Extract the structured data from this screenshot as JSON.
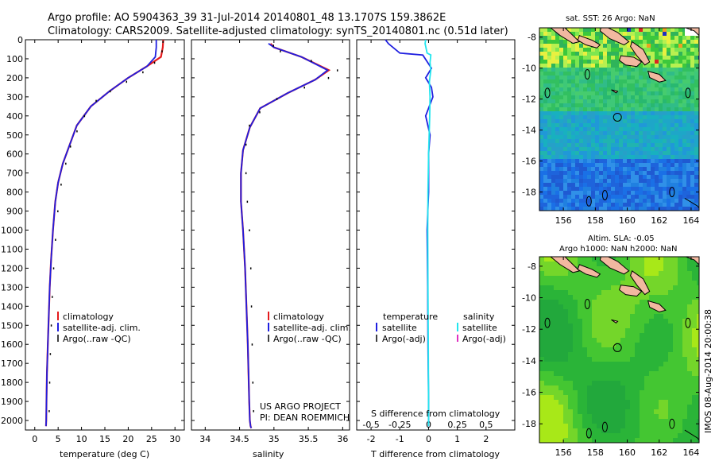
{
  "title": {
    "line1": "Argo profile: AO 5904363_39 31-Jul-2014 20140801_48 13.1707S 159.3862E",
    "line2": "Climatology: CARS2009. Satellite-adjusted climatology: synTS_20140801.nc (0.51d later)"
  },
  "credits": {
    "line1": "US ARGO PROJECT",
    "line2": "PI: DEAN ROEMMICH"
  },
  "stamp": "IMOS 08-Aug-2014 20:00:38",
  "colors": {
    "clim": "#e41a1c",
    "sat": "#1f1fe0",
    "argo": "#000000",
    "sat_sal": "#22e6ee",
    "argo_sal": "#e030c0"
  },
  "chart_data": [
    {
      "type": "line",
      "name": "temperature",
      "xlabel": "temperature (deg C)",
      "ylabel": "",
      "xlim": [
        -2,
        32
      ],
      "ylim": [
        2050,
        0
      ],
      "xticks": [
        0,
        5,
        10,
        15,
        20,
        25,
        30
      ],
      "yticks": [
        0,
        100,
        200,
        300,
        400,
        500,
        600,
        700,
        800,
        900,
        1000,
        1100,
        1200,
        1300,
        1400,
        1500,
        1600,
        1700,
        1800,
        1900,
        2000
      ],
      "series": [
        {
          "name": "climatology",
          "style": "line",
          "x": [
            27.5,
            27.4,
            27.0,
            24.0,
            20.0,
            16.0,
            12.0,
            9.0,
            7.5,
            6.0,
            5.0,
            4.4,
            3.9,
            3.5,
            3.2,
            3.0,
            2.8,
            2.6,
            2.5,
            2.45,
            2.4
          ],
          "y": [
            0,
            40,
            90,
            140,
            200,
            270,
            350,
            450,
            550,
            650,
            750,
            850,
            1000,
            1150,
            1300,
            1450,
            1600,
            1750,
            1900,
            2000,
            2030
          ]
        },
        {
          "name": "satellite-adj. clim.",
          "style": "line",
          "x": [
            26.0,
            26.0,
            25.8,
            24.0,
            20.0,
            16.0,
            12.0,
            9.0,
            7.5,
            6.0,
            5.0,
            4.4,
            3.9,
            3.5,
            3.2,
            3.0,
            2.8,
            2.6,
            2.5,
            2.45,
            2.4
          ],
          "y": [
            0,
            40,
            90,
            140,
            200,
            270,
            350,
            450,
            550,
            650,
            750,
            850,
            1000,
            1150,
            1300,
            1450,
            1600,
            1750,
            1900,
            2000,
            2030
          ]
        },
        {
          "name": "Argo(..raw -QC)",
          "style": "dots",
          "x": [
            26.8,
            26.6,
            25.0,
            22.5,
            19.0,
            15.5,
            12.5,
            10.0,
            8.4,
            7.0,
            6.0,
            5.0,
            4.3,
            3.8,
            3.4,
            3.1,
            2.9,
            2.7,
            2.55,
            2.45
          ],
          "y": [
            10,
            60,
            120,
            170,
            220,
            270,
            320,
            400,
            480,
            560,
            650,
            760,
            900,
            1050,
            1200,
            1350,
            1500,
            1650,
            1800,
            1950
          ]
        }
      ],
      "legend": [
        "climatology",
        "satellite-adj. clim.",
        "Argo(..raw -QC)"
      ]
    },
    {
      "type": "line",
      "name": "salinity",
      "xlabel": "salinity",
      "ylabel": "",
      "xlim": [
        33.8,
        36.1
      ],
      "ylim": [
        2050,
        0
      ],
      "xticks": [
        34,
        34.5,
        35,
        35.5,
        36
      ],
      "series": [
        {
          "name": "climatology",
          "style": "line",
          "x": [
            34.95,
            35.0,
            35.4,
            35.8,
            35.6,
            35.2,
            34.8,
            34.65,
            34.55,
            34.52,
            34.52,
            34.55,
            34.58,
            34.6,
            34.62,
            34.63,
            34.64,
            34.65,
            34.66,
            34.67
          ],
          "y": [
            20,
            40,
            90,
            160,
            210,
            280,
            360,
            460,
            580,
            700,
            850,
            1000,
            1200,
            1400,
            1600,
            1750,
            1900,
            2000,
            2030,
            2040
          ]
        },
        {
          "name": "satellite-adj. clim.",
          "style": "line",
          "x": [
            34.92,
            35.0,
            35.4,
            35.78,
            35.6,
            35.2,
            34.8,
            34.65,
            34.55,
            34.52,
            34.52,
            34.55,
            34.58,
            34.6,
            34.62,
            34.63,
            34.64,
            34.65,
            34.66,
            34.67
          ],
          "y": [
            20,
            40,
            90,
            160,
            210,
            280,
            360,
            460,
            580,
            700,
            850,
            1000,
            1200,
            1400,
            1600,
            1750,
            1900,
            2000,
            2030,
            2040
          ]
        },
        {
          "name": "Argo(..raw -QC)",
          "style": "dots",
          "x": [
            34.95,
            35.05,
            35.5,
            35.88,
            35.75,
            35.4,
            35.0,
            34.75,
            34.6,
            34.55,
            34.55,
            34.57,
            34.6,
            34.62,
            34.63,
            34.64,
            34.65,
            34.66
          ],
          "y": [
            30,
            60,
            110,
            160,
            200,
            250,
            310,
            380,
            450,
            550,
            700,
            850,
            1000,
            1200,
            1400,
            1600,
            1800,
            1950
          ]
        }
      ],
      "legend": [
        "climatology",
        "satellite-adj. clim.",
        "Argo(..raw -QC)"
      ]
    },
    {
      "type": "line",
      "name": "differences",
      "xlabel": "T difference from climatology",
      "xlabel_top": "S difference from climatology",
      "xlim": [
        -2.5,
        3
      ],
      "ylim": [
        2050,
        0
      ],
      "xticks": [
        -2,
        -1,
        0,
        1,
        2
      ],
      "xticks_s": [
        -0.5,
        -0.25,
        0,
        0.25,
        0.5
      ],
      "series": [
        {
          "name": "T satellite",
          "style": "line",
          "x": [
            -1.5,
            -1.4,
            -1.0,
            -0.2,
            0.1,
            -0.1,
            0.1,
            0.15,
            -0.1,
            0.05,
            0.0,
            0.0,
            -0.05,
            -0.03,
            -0.02,
            0.0,
            0.0
          ],
          "y": [
            0,
            20,
            70,
            80,
            150,
            200,
            250,
            300,
            400,
            500,
            600,
            800,
            1000,
            1300,
            1600,
            1900,
            2030
          ]
        },
        {
          "name": "S satellite",
          "style": "line",
          "x": [
            -0.1,
            -0.12,
            -0.05,
            0.08,
            0.05,
            0.08,
            0.03,
            0.05,
            0.04,
            0.02,
            0.0,
            -0.02,
            -0.03,
            -0.02,
            -0.01,
            0.0,
            0.0
          ],
          "y": [
            0,
            20,
            70,
            80,
            120,
            160,
            220,
            300,
            400,
            500,
            600,
            800,
            1000,
            1300,
            1600,
            1900,
            2030
          ]
        }
      ],
      "legend_t": {
        "heading": "temperature",
        "items": [
          "satellite",
          "Argo(-adj)"
        ]
      },
      "legend_s": {
        "heading": "salinity",
        "items": [
          "satellite",
          "Argo(-adj)"
        ]
      }
    },
    {
      "type": "heatmap",
      "name": "sst-map",
      "title": "sat. SST: 26 Argo: NaN",
      "xticks": [
        156,
        158,
        160,
        162,
        164
      ],
      "yticks": [
        -8,
        -10,
        -12,
        -14,
        -16,
        -18
      ],
      "xlim": [
        154.5,
        164.5
      ],
      "ylim": [
        -19.2,
        -7.4
      ],
      "argo_position": {
        "lon": 159.3862,
        "lat": -13.1707
      }
    },
    {
      "type": "heatmap",
      "name": "sla-map",
      "title_line1": "Altim. SLA: -0.05",
      "title_line2": "Argo h1000: NaN h2000: NaN",
      "xticks": [
        156,
        158,
        160,
        162,
        164
      ],
      "yticks": [
        -8,
        -10,
        -12,
        -14,
        -16,
        -18
      ],
      "xlim": [
        154.5,
        164.5
      ],
      "ylim": [
        -19.2,
        -7.4
      ],
      "argo_position": {
        "lon": 159.3862,
        "lat": -13.1707
      }
    }
  ]
}
